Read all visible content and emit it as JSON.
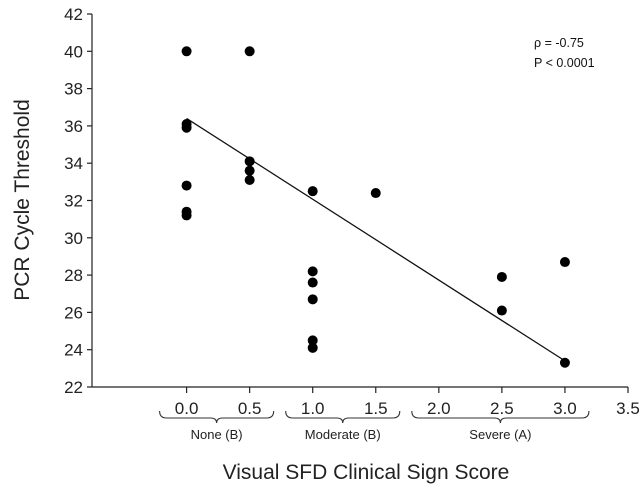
{
  "chart_data": {
    "type": "scatter",
    "xlabel": "Visual SFD Clinical Sign Score",
    "ylabel": "PCR Cycle Threshold",
    "xlim": [
      -0.75,
      3.5
    ],
    "ylim": [
      22,
      42
    ],
    "x_ticks": [
      "0.0",
      "0.5",
      "1.0",
      "1.5",
      "2.0",
      "2.5",
      "3.0",
      "3.5"
    ],
    "y_ticks": [
      "22",
      "24",
      "26",
      "28",
      "30",
      "32",
      "34",
      "36",
      "38",
      "40",
      "42"
    ],
    "points": [
      {
        "x": 0.0,
        "y": 40.0
      },
      {
        "x": 0.0,
        "y": 36.1
      },
      {
        "x": 0.0,
        "y": 35.9
      },
      {
        "x": 0.0,
        "y": 32.8
      },
      {
        "x": 0.0,
        "y": 31.4
      },
      {
        "x": 0.0,
        "y": 31.2
      },
      {
        "x": 0.5,
        "y": 40.0
      },
      {
        "x": 0.5,
        "y": 34.1
      },
      {
        "x": 0.5,
        "y": 33.6
      },
      {
        "x": 0.5,
        "y": 33.1
      },
      {
        "x": 1.0,
        "y": 32.5
      },
      {
        "x": 1.0,
        "y": 28.2
      },
      {
        "x": 1.0,
        "y": 27.6
      },
      {
        "x": 1.0,
        "y": 26.7
      },
      {
        "x": 1.0,
        "y": 24.5
      },
      {
        "x": 1.0,
        "y": 24.1
      },
      {
        "x": 1.5,
        "y": 32.4
      },
      {
        "x": 2.5,
        "y": 27.9
      },
      {
        "x": 2.5,
        "y": 26.1
      },
      {
        "x": 3.0,
        "y": 28.7
      },
      {
        "x": 3.0,
        "y": 23.3
      }
    ],
    "regression_line": {
      "x": [
        0.0,
        3.0
      ],
      "y": [
        36.4,
        23.4
      ]
    },
    "annotations": [
      "ρ = -0.75",
      "P < 0.0001"
    ],
    "groups": [
      {
        "label": "None (B)",
        "range": [
          0.0,
          0.5
        ]
      },
      {
        "label": "Moderate (B)",
        "range": [
          1.0,
          1.5
        ]
      },
      {
        "label": "Severe (A)",
        "range": [
          2.0,
          3.0
        ]
      }
    ],
    "grid": false,
    "legend": "none"
  }
}
